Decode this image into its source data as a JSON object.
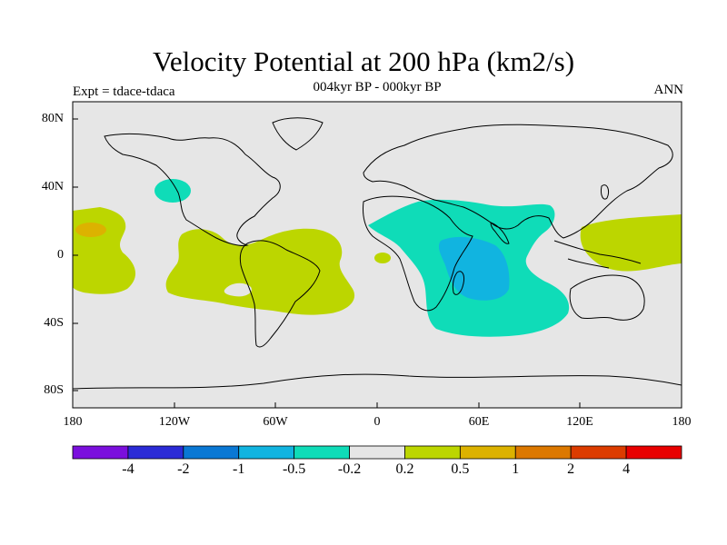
{
  "title": "Velocity Potential at 200 hPa (km2/s)",
  "subtitle": "004kyr BP - 000kyr BP",
  "expt_label": "Expt = tdace-tdaca",
  "season": "ANN",
  "map": {
    "x_ticks": [
      "180",
      "120W",
      "60W",
      "0",
      "60E",
      "120E",
      "180"
    ],
    "y_ticks": [
      "80N",
      "40N",
      "0",
      "40S",
      "80S"
    ],
    "background_color": "#e6e6e6",
    "coast_color": "#000000"
  },
  "colorbar": {
    "colors": [
      "#7b0fdd",
      "#2b2bd6",
      "#0a78d4",
      "#11b4e0",
      "#0fdcb8",
      "#e6e6e6",
      "#bcd600",
      "#dcb200",
      "#dc7800",
      "#dc3c00",
      "#e80000"
    ],
    "labels": [
      "-4",
      "-2",
      "-1",
      "-0.5",
      "-0.2",
      "0.2",
      "0.5",
      "1",
      "2",
      "4"
    ]
  },
  "chart_data": {
    "type": "heatmap",
    "title": "Velocity Potential at 200 hPa (km2/s)",
    "subtitle": "004kyr BP - 000kyr BP",
    "xlim": [
      -180,
      180
    ],
    "ylim": [
      -90,
      90
    ],
    "contour_levels": [
      -4,
      -2,
      -1,
      -0.5,
      -0.2,
      0.2,
      0.5,
      1,
      2,
      4
    ],
    "regions": [
      {
        "level_range": [
          0.2,
          0.5
        ],
        "area": "Central/East Pacific & South America",
        "lon": [
          -130,
          -20
        ],
        "lat": [
          -35,
          15
        ]
      },
      {
        "level_range": [
          0.2,
          0.5
        ],
        "area": "West Pacific",
        "lon": [
          120,
          180
        ],
        "lat": [
          -10,
          25
        ]
      },
      {
        "level_range": [
          0.2,
          0.5
        ],
        "area": "Central Pacific west of dateline",
        "lon": [
          -180,
          -140
        ],
        "lat": [
          -20,
          25
        ]
      },
      {
        "level_range": [
          0.5,
          1
        ],
        "area": "Central Pacific max",
        "lon": [
          -178,
          -167
        ],
        "lat": [
          13,
          18
        ]
      },
      {
        "level_range": [
          -0.5,
          -0.2
        ],
        "area": "Indian Ocean / Africa / Arabia",
        "lon": [
          10,
          105
        ],
        "lat": [
          -50,
          30
        ]
      },
      {
        "level_range": [
          -1,
          -0.5
        ],
        "area": "West Indian Ocean min",
        "lon": [
          35,
          80
        ],
        "lat": [
          -25,
          10
        ]
      },
      {
        "level_range": [
          -0.5,
          -0.2
        ],
        "area": "NE Pacific off North America",
        "lon": [
          -135,
          -120
        ],
        "lat": [
          30,
          42
        ]
      }
    ]
  }
}
